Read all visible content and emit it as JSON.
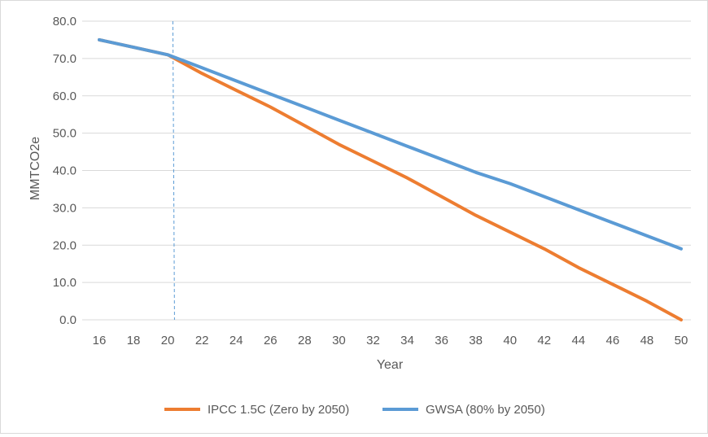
{
  "chart_data": {
    "type": "line",
    "title": "",
    "xlabel": "Year",
    "ylabel": "MMTCO2e",
    "x": [
      16,
      18,
      20,
      22,
      24,
      26,
      28,
      30,
      32,
      34,
      36,
      38,
      40,
      42,
      44,
      46,
      48,
      50
    ],
    "xlim": [
      16,
      50
    ],
    "ylim": [
      0,
      80
    ],
    "x_ticks": [
      16,
      18,
      20,
      22,
      24,
      26,
      28,
      30,
      32,
      34,
      36,
      38,
      40,
      42,
      44,
      46,
      48,
      50
    ],
    "y_ticks": [
      "0.0",
      "10.0",
      "20.0",
      "30.0",
      "40.0",
      "50.0",
      "60.0",
      "70.0",
      "80.0"
    ],
    "grid": "horizontal",
    "legend_position": "bottom",
    "reference_line_x": 20.3,
    "series": [
      {
        "name": "IPCC 1.5C (Zero by 2050)",
        "color": "#ED7D31",
        "values": [
          75.0,
          73.0,
          71.0,
          66.0,
          61.5,
          57.0,
          52.0,
          47.0,
          42.5,
          38.0,
          33.0,
          28.0,
          23.5,
          19.0,
          14.0,
          9.5,
          5.0,
          0.0
        ]
      },
      {
        "name": "GWSA (80% by 2050)",
        "color": "#5B9BD5",
        "values": [
          75.0,
          73.0,
          71.0,
          67.5,
          64.0,
          60.5,
          57.0,
          53.5,
          50.0,
          46.5,
          43.0,
          39.5,
          36.5,
          33.0,
          29.5,
          26.0,
          22.5,
          19.0
        ]
      }
    ]
  }
}
